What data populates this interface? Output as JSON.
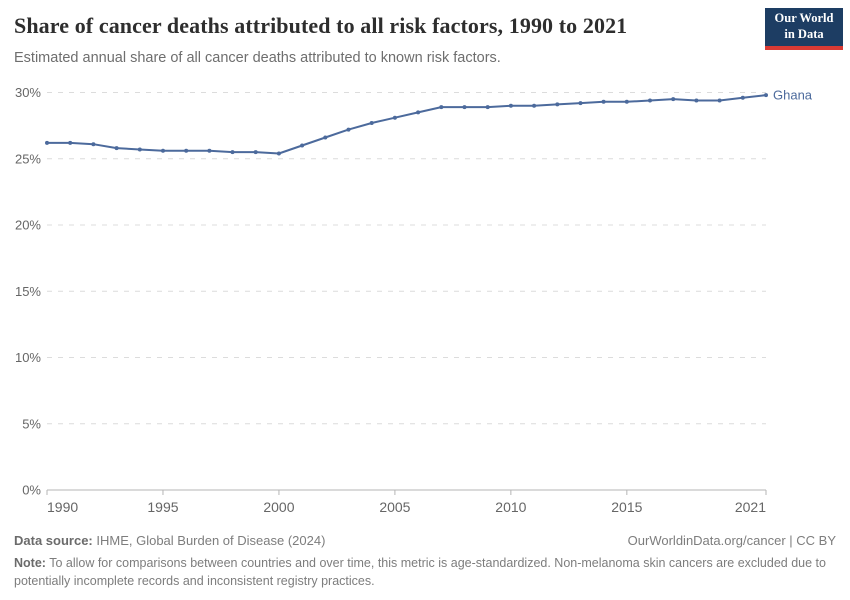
{
  "header": {
    "title": "Share of cancer deaths attributed to all risk factors, 1990 to 2021",
    "subtitle": "Estimated annual share of all cancer deaths attributed to known risk factors.",
    "logo": {
      "line1": "Our World",
      "line2": "in Data"
    }
  },
  "footer": {
    "data_source_label": "Data source:",
    "data_source_text": " IHME, Global Burden of Disease (2024)",
    "attribution": "OurWorldinData.org/cancer | CC BY",
    "note_label": "Note:",
    "note_text": " To allow for comparisons between countries and over time, this metric is age-standardized. Non-melanoma skin cancers are excluded due to potentially incomplete records and inconsistent registry practices."
  },
  "colors": {
    "series_blue": "#4C6A9C",
    "logo_bg": "#1d3d63",
    "logo_red": "#d93a34",
    "grid": "#dcdcdc",
    "axis": "#b5b5b5",
    "tick_label": "#666666",
    "title_text": "#2e2e2e",
    "subtitle_text": "#6e6e6e"
  },
  "chart_data": {
    "type": "line",
    "title": "Share of cancer deaths attributed to all risk factors, 1990 to 2021",
    "xlabel": "",
    "ylabel": "",
    "x": [
      1990,
      1991,
      1992,
      1993,
      1994,
      1995,
      1996,
      1997,
      1998,
      1999,
      2000,
      2001,
      2002,
      2003,
      2004,
      2005,
      2006,
      2007,
      2008,
      2009,
      2010,
      2011,
      2012,
      2013,
      2014,
      2015,
      2016,
      2017,
      2018,
      2019,
      2020,
      2021
    ],
    "series": [
      {
        "name": "Ghana",
        "color": "#4C6A9C",
        "values": [
          26.2,
          26.2,
          26.1,
          25.8,
          25.7,
          25.6,
          25.6,
          25.6,
          25.5,
          25.5,
          25.4,
          26.0,
          26.6,
          27.2,
          27.7,
          28.1,
          28.5,
          28.9,
          28.9,
          28.9,
          29.0,
          29.0,
          29.1,
          29.2,
          29.3,
          29.3,
          29.4,
          29.5,
          29.4,
          29.4,
          29.6,
          29.8
        ]
      }
    ],
    "xlim": [
      1990,
      2021
    ],
    "ylim": [
      0,
      30
    ],
    "xticks": [
      1990,
      1995,
      2000,
      2005,
      2010,
      2015,
      2021
    ],
    "yticks": [
      0,
      5,
      10,
      15,
      20,
      25,
      30
    ],
    "ytick_suffix": "%",
    "grid": "dashed-horizontal",
    "legend_position": "end-of-line-label"
  }
}
